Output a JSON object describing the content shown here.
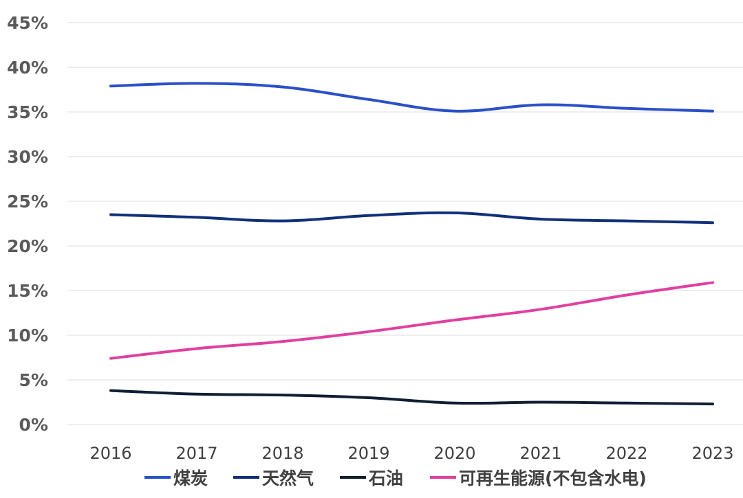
{
  "chart_data": {
    "type": "line",
    "categories": [
      "2016",
      "2017",
      "2018",
      "2019",
      "2020",
      "2021",
      "2022",
      "2023"
    ],
    "ylim": [
      0,
      45
    ],
    "yticks": [
      0,
      5,
      10,
      15,
      20,
      25,
      30,
      35,
      40,
      45
    ],
    "ytick_labels": [
      "0%",
      "5%",
      "10%",
      "15%",
      "20%",
      "25%",
      "30%",
      "35%",
      "40%",
      "45%"
    ],
    "grid": true,
    "legend_position": "bottom",
    "series": [
      {
        "name": "煤炭",
        "color": "#2b50c8",
        "values": [
          37.9,
          38.2,
          37.8,
          36.4,
          35.1,
          35.8,
          35.4,
          35.1
        ]
      },
      {
        "name": "天然气",
        "color": "#10307a",
        "values": [
          23.5,
          23.2,
          22.8,
          23.4,
          23.7,
          23.0,
          22.8,
          22.6
        ]
      },
      {
        "name": "石油",
        "color": "#0f1e33",
        "values": [
          3.8,
          3.4,
          3.3,
          3.0,
          2.4,
          2.5,
          2.4,
          2.3
        ]
      },
      {
        "name": "可再生能源(不包含水电)",
        "color": "#e040a0",
        "values": [
          7.4,
          8.5,
          9.3,
          10.4,
          11.7,
          12.9,
          14.5,
          15.9
        ]
      }
    ]
  }
}
